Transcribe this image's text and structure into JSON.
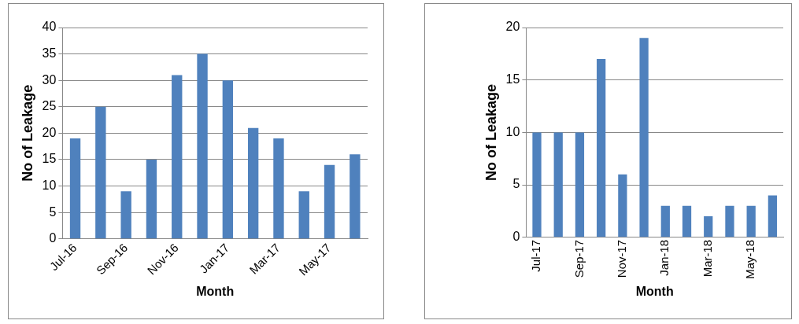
{
  "chart_data": [
    {
      "type": "bar",
      "xlabel": "Month",
      "ylabel": "No of Leakage",
      "categories": [
        "Jul-16",
        null,
        "Sep-16",
        null,
        "Nov-16",
        null,
        "Jan-17",
        null,
        "Mar-17",
        null,
        "May-17",
        null
      ],
      "series": [
        {
          "color": "#4f81bd",
          "values": [
            19,
            25,
            9,
            15,
            31,
            35,
            30,
            21,
            19,
            9,
            14,
            16
          ]
        }
      ],
      "ylim": [
        0,
        40
      ],
      "yticks": [
        0,
        5,
        10,
        15,
        20,
        25,
        30,
        35,
        40
      ],
      "grid": "y",
      "legend": false
    },
    {
      "type": "bar",
      "xlabel": "Month",
      "ylabel": "No of Leakage",
      "categories": [
        "Jul-17",
        null,
        "Sep-17",
        null,
        "Nov-17",
        null,
        "Jan-18",
        null,
        "Mar-18",
        null,
        "May-18",
        null
      ],
      "series": [
        {
          "color": "#4f81bd",
          "values": [
            10,
            10,
            10,
            17,
            6,
            19,
            3,
            3,
            2,
            3,
            3,
            4
          ]
        }
      ],
      "ylim": [
        0,
        20
      ],
      "yticks": [
        0,
        5,
        10,
        15,
        20
      ],
      "grid": "y",
      "legend": false
    }
  ]
}
